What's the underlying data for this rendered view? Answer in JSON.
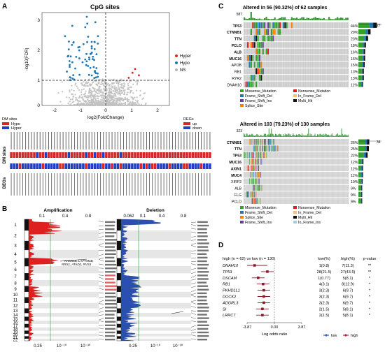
{
  "panels": {
    "A": {
      "label": "A",
      "title": "CpG sites",
      "ylabel": "-log10(FDR)",
      "xlabel": "log2(FoldChange)",
      "y_ticks": [
        "0",
        "1",
        "2",
        "3"
      ],
      "x_ticks": [
        "-2",
        "-1",
        "0",
        "1",
        "2"
      ],
      "legend": [
        {
          "label": "Hyper",
          "color": "#d62728"
        },
        {
          "label": "Hypo",
          "color": "#1f77b4"
        },
        {
          "label": "NS",
          "color": "#b5b5b5"
        }
      ],
      "dm_legend_title": "DM sites",
      "dm_legend": [
        {
          "label": "Hypo",
          "color": "#d62728"
        },
        {
          "label": "Hyper",
          "color": "#2040c0"
        }
      ],
      "deg_legend_title": "DEGs",
      "deg_legend": [
        {
          "label": "up",
          "color": "#d62728"
        },
        {
          "label": "down",
          "color": "#2040c0"
        }
      ],
      "row_label_dm": "DM sites",
      "row_label_deg": "DEGs"
    },
    "B": {
      "label": "B",
      "amp_title": "Amplification",
      "del_title": "Deletion",
      "amp_top_ticks": [
        "0.1",
        "0.4",
        "0.8"
      ],
      "del_top_ticks": [
        "0.062",
        "0.1",
        "0.4",
        "0.8"
      ],
      "bottom_ticks": [
        "0.25",
        "10⁻¹⁰",
        "10⁻³⁰"
      ],
      "chromosomes": [
        "1",
        "2",
        "3",
        "4",
        "5",
        "6",
        "7",
        "8",
        "9",
        "10",
        "11",
        "12",
        "13",
        "14",
        "15",
        "16",
        "17",
        "18",
        "19",
        "20",
        "21",
        "22"
      ],
      "annotation1": "RAD54B, LAPTM4B,",
      "annotation2": "RRS1, ATAD2, RVS1"
    },
    "C": {
      "label": "C",
      "top_title": "Altered in 56 (90.32%) of 62 samples",
      "top_ymax": "587",
      "top_right_scale": [
        "0",
        "27"
      ],
      "top_genes": [
        {
          "gene": "TP53",
          "pct": "44%"
        },
        {
          "gene": "CTNNB1",
          "pct": "29%"
        },
        {
          "gene": "TTN",
          "pct": "23%"
        },
        {
          "gene": "PCLO",
          "pct": "18%"
        },
        {
          "gene": "ALB",
          "pct": "16%"
        },
        {
          "gene": "MUC16",
          "pct": "16%"
        },
        {
          "gene": "APOB",
          "pct": "15%"
        },
        {
          "gene": "RB1",
          "pct": "13%"
        },
        {
          "gene": "RYR2",
          "pct": "13%"
        },
        {
          "gene": "DNAH10",
          "pct": "11%"
        }
      ],
      "top_legend": [
        {
          "label": "Missense_Mutation",
          "color": "#33a02c"
        },
        {
          "label": "Nonsense_Mutation",
          "color": "#e31a1c"
        },
        {
          "label": "Frame_Shift_Del",
          "color": "#1f78b4"
        },
        {
          "label": "In_Frame_Del",
          "color": "#fdbf6f"
        },
        {
          "label": "Frame_Shift_Ins",
          "color": "#6a3d9a"
        },
        {
          "label": "Multi_Hit",
          "color": "#111111"
        },
        {
          "label": "Splice_Site",
          "color": "#ff7f00"
        }
      ],
      "bottom_title": "Altered in 103 (79.23%) of 130 samples",
      "bottom_ymax": "323",
      "bottom_right_scale": [
        "0",
        "34"
      ],
      "bottom_genes": [
        {
          "gene": "CTNNB1",
          "pct": "26%"
        },
        {
          "gene": "TTN",
          "pct": "25%"
        },
        {
          "gene": "TP53",
          "pct": "22%"
        },
        {
          "gene": "MUC16",
          "pct": "12%"
        },
        {
          "gene": "AXIN1",
          "pct": "11%"
        },
        {
          "gene": "MUC4",
          "pct": "11%"
        },
        {
          "gene": "XIRP2",
          "pct": "10%"
        },
        {
          "gene": "ALB",
          "pct": "9%"
        },
        {
          "gene": "FLG",
          "pct": "9%"
        },
        {
          "gene": "PCLO",
          "pct": "9%"
        }
      ],
      "bottom_legend": [
        {
          "label": "Missense_Mutation",
          "color": "#33a02c"
        },
        {
          "label": "Nonsense_Mutation",
          "color": "#e31a1c"
        },
        {
          "label": "Frame_Shift_Del",
          "color": "#1f78b4"
        },
        {
          "label": "In_Frame_Del",
          "color": "#fdbf6f"
        },
        {
          "label": "Splice_Site",
          "color": "#ff7f00"
        },
        {
          "label": "Multi_Hit",
          "color": "#111111"
        },
        {
          "label": "Frame_Shift_Ins",
          "color": "#6a3d9a"
        },
        {
          "label": "In_Frame_Ins",
          "color": "#a6cee3"
        }
      ]
    },
    "D": {
      "label": "D",
      "header_group": "high (n = 62) vs low (n = 130)",
      "col_low": "low(%)",
      "col_high": "high(%)",
      "col_p": "p-value",
      "xlabel": "Log odds ratio",
      "x_ticks": [
        "-3.87",
        "0.00",
        "3.87"
      ],
      "legend": [
        {
          "label": "low",
          "color": "#3a62c4"
        },
        {
          "label": "high",
          "color": "#c0263a"
        }
      ]
    }
  },
  "chart_data": [
    {
      "type": "table",
      "panel": "D",
      "columns": [
        "gene",
        "low(%)",
        "high(%)",
        "p-value"
      ],
      "rows": [
        {
          "gene": "DNAH10",
          "low": "1(0.8)",
          "high": "7(11.3)",
          "p": "**"
        },
        {
          "gene": "TP53",
          "low": "28(21.5)",
          "high": "27(43.5)",
          "p": "**"
        },
        {
          "gene": "DSCAM",
          "low": "1(0.77)",
          "high": "5(8.1)",
          "p": "*"
        },
        {
          "gene": "RB1",
          "low": "4(3.1)",
          "high": "8(12.9)",
          "p": "*"
        },
        {
          "gene": "PKHD1L1",
          "low": "3(2.3)",
          "high": "6(9.7)",
          "p": "*"
        },
        {
          "gene": "DOCK2",
          "low": "3(2.3)",
          "high": "6(9.7)",
          "p": "*"
        },
        {
          "gene": "ADGRL3",
          "low": "3(2.3)",
          "high": "6(9.7)",
          "p": "*"
        },
        {
          "gene": "SI",
          "low": "2(1.5)",
          "high": "5(8.1)",
          "p": "*"
        },
        {
          "gene": "LRRC7",
          "low": "2(1.5)",
          "high": "5(8.1)",
          "p": "*"
        }
      ],
      "log_odds": [
        -2.8,
        -1.0,
        -2.3,
        -1.6,
        -1.5,
        -1.5,
        -1.5,
        -1.7,
        -1.7
      ],
      "xlim": [
        -3.87,
        3.87
      ]
    }
  ]
}
